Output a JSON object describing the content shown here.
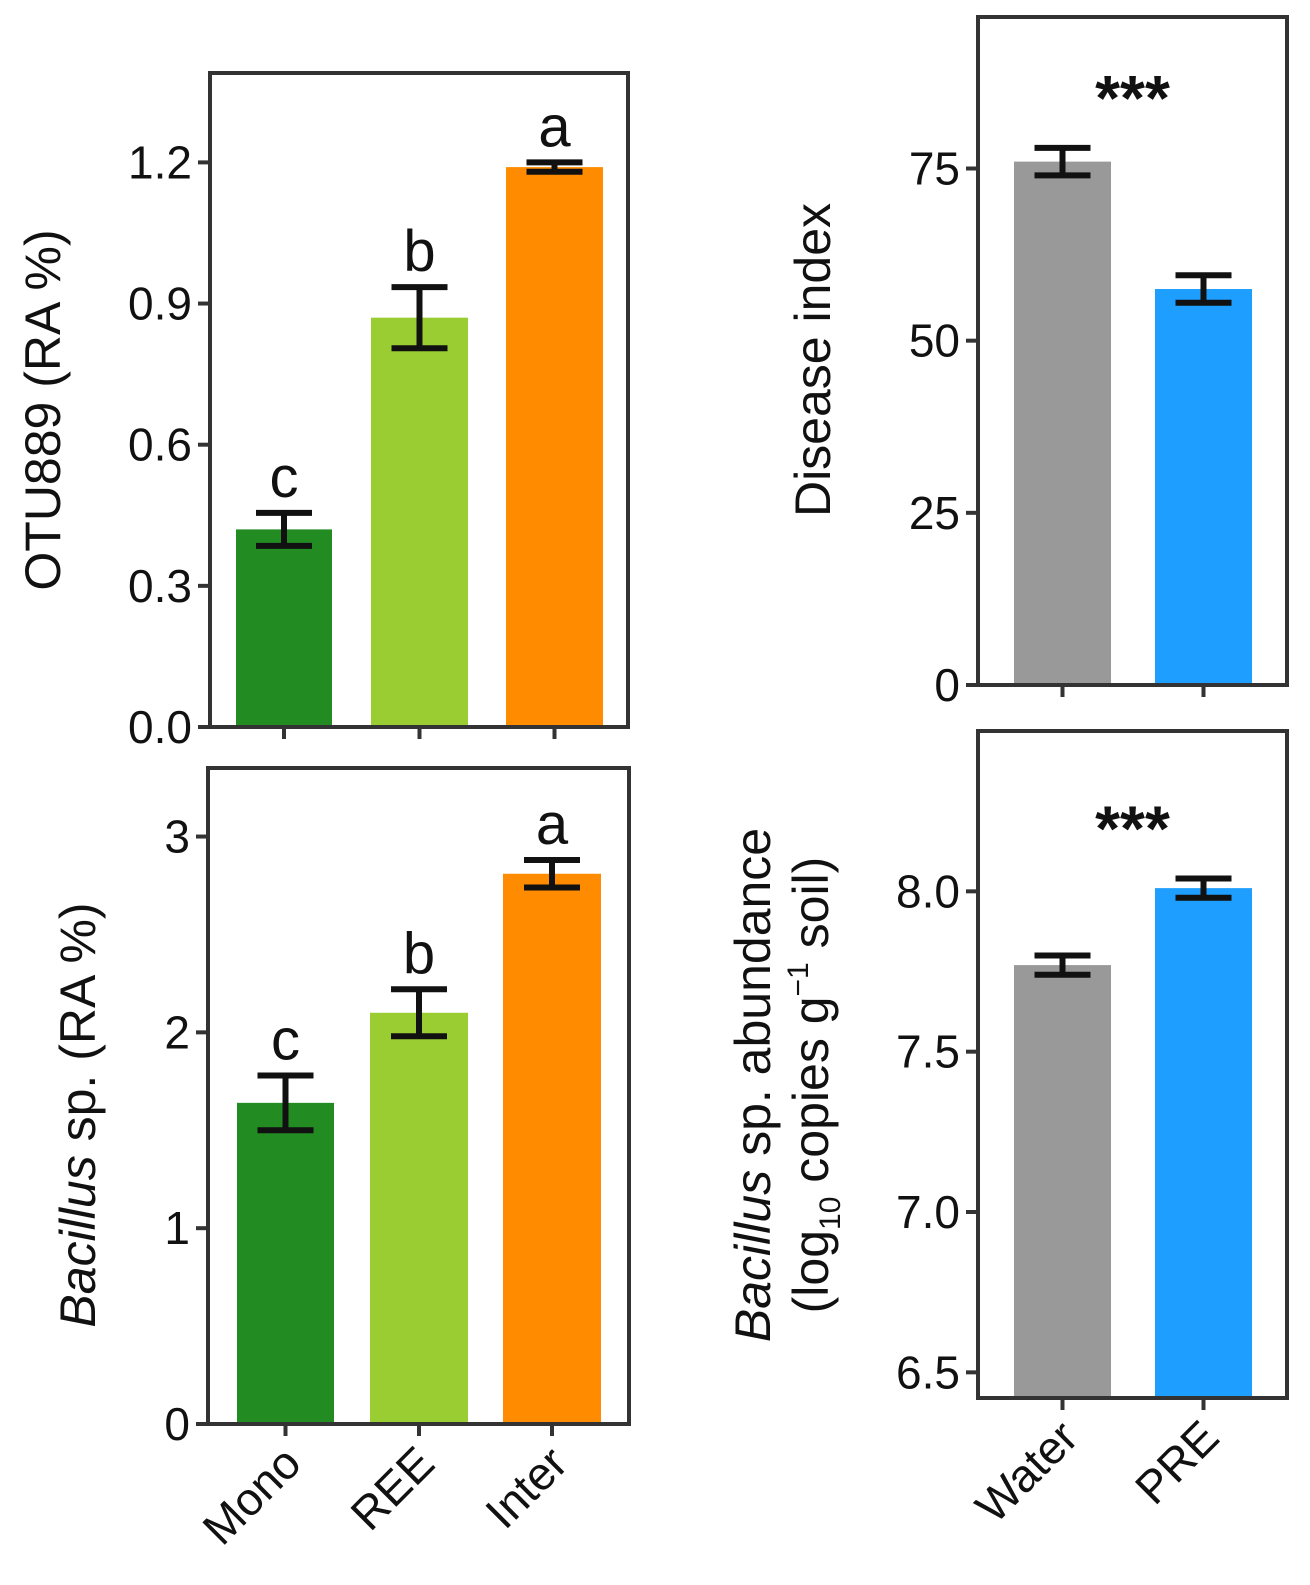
{
  "colors": {
    "mono": "#228B22",
    "ree": "#9ACD32",
    "inter": "#FF8C00",
    "water": "#999999",
    "pre": "#1E9EFF",
    "axis": "#333333",
    "error": "#111111"
  },
  "chart_data": [
    {
      "id": "otu889",
      "type": "bar",
      "title": "",
      "ylabel": "OTU889 (RA %)",
      "ylim": [
        0,
        1.39
      ],
      "yticks": [
        0.0,
        0.3,
        0.6,
        0.9,
        1.2
      ],
      "ytick_labels": [
        "0.0",
        "0.3",
        "0.6",
        "0.9",
        "1.2"
      ],
      "categories": [
        "Mono",
        "REE",
        "Inter"
      ],
      "show_category_labels": false,
      "values": [
        0.42,
        0.87,
        1.19
      ],
      "errors": [
        0.035,
        0.065,
        0.01
      ],
      "bar_colors": [
        "#228B22",
        "#9ACD32",
        "#FF8C00"
      ],
      "annotations": [
        "c",
        "b",
        "a"
      ]
    },
    {
      "id": "disease-index",
      "type": "bar",
      "title": "",
      "ylabel": "Disease index",
      "ylim": [
        0,
        97
      ],
      "yticks": [
        0,
        25,
        50,
        75
      ],
      "ytick_labels": [
        "0",
        "25",
        "50",
        "75"
      ],
      "categories": [
        "Water",
        "PRE"
      ],
      "show_category_labels": false,
      "values": [
        76,
        57.5
      ],
      "errors": [
        2,
        2
      ],
      "bar_colors": [
        "#999999",
        "#1E9EFF"
      ],
      "significance": "***"
    },
    {
      "id": "bacillus-ra",
      "type": "bar",
      "title": "",
      "ylabel_parts": [
        {
          "text": "Bacillus",
          "italic": true
        },
        {
          "text": " sp. (RA %)",
          "italic": false
        }
      ],
      "ylim": [
        0,
        3.35
      ],
      "yticks": [
        0,
        1,
        2,
        3
      ],
      "ytick_labels": [
        "0",
        "1",
        "2",
        "3"
      ],
      "categories": [
        "Mono",
        "REE",
        "Inter"
      ],
      "show_category_labels": true,
      "values": [
        1.64,
        2.1,
        2.81
      ],
      "errors": [
        0.14,
        0.12,
        0.07
      ],
      "bar_colors": [
        "#228B22",
        "#9ACD32",
        "#FF8C00"
      ],
      "annotations": [
        "c",
        "b",
        "a"
      ]
    },
    {
      "id": "bacillus-abundance",
      "type": "bar",
      "title": "",
      "ylabel_line1_parts": [
        {
          "text": "Bacillus",
          "italic": true
        },
        {
          "text": " sp. abundance",
          "italic": false
        }
      ],
      "ylabel_line2": {
        "prefix": "(log",
        "subscript": "10",
        "middle": " copies g",
        "superscript": "−1",
        "suffix": " soil)"
      },
      "ylim": [
        6.42,
        8.5
      ],
      "yticks": [
        6.5,
        7.0,
        7.5,
        8.0
      ],
      "ytick_labels": [
        "6.5",
        "7.0",
        "7.5",
        "8.0"
      ],
      "categories": [
        "Water",
        "PRE"
      ],
      "show_category_labels": true,
      "values": [
        7.77,
        8.01
      ],
      "errors": [
        0.03,
        0.03
      ],
      "bar_colors": [
        "#999999",
        "#1E9EFF"
      ],
      "significance": "***"
    }
  ]
}
